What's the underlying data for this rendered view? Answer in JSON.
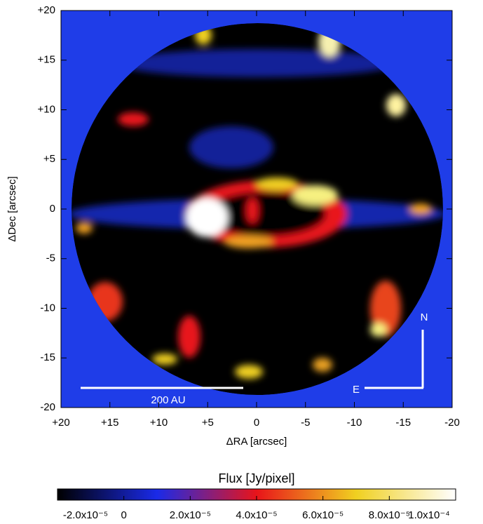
{
  "chart_data": {
    "type": "heatmap",
    "xlabel": "ΔRA [arcsec]",
    "ylabel": "ΔDec [arcsec]",
    "xlim": [
      20,
      -20
    ],
    "ylim": [
      -20,
      20
    ],
    "xticks": [
      {
        "value": 20,
        "label": "+20"
      },
      {
        "value": 15,
        "label": "+15"
      },
      {
        "value": 10,
        "label": "+10"
      },
      {
        "value": 5,
        "label": "+5"
      },
      0,
      -5,
      -10,
      -15,
      -20
    ],
    "yticks": [
      -20,
      -15,
      -10,
      -5,
      0,
      {
        "value": 5,
        "label": "+5"
      },
      {
        "value": 10,
        "label": "+10"
      },
      {
        "value": 15,
        "label": "+15"
      },
      {
        "value": 20,
        "label": "+20"
      }
    ],
    "annotations": [
      "200 AU",
      "N",
      "E"
    ],
    "colorbar": {
      "label": "Flux [Jy/pixel]",
      "lim": [
        -2e-05,
        0.0001
      ],
      "ticks": [
        {
          "value": -2e-05,
          "label": "-2.0x10⁻⁵"
        },
        0,
        {
          "value": 2e-05,
          "label": "2.0x10⁻⁵"
        },
        {
          "value": 4e-05,
          "label": "4.0x10⁻⁵"
        },
        {
          "value": 6e-05,
          "label": "6.0x10⁻⁵"
        },
        {
          "value": 8e-05,
          "label": "8.0x10⁻⁵"
        },
        {
          "value": 0.0001,
          "label": "1.0x10⁻⁴"
        }
      ],
      "colors": [
        "#000000",
        "#1a2ae8",
        "#e8141a",
        "#f0d020",
        "#ffffff"
      ]
    }
  }
}
